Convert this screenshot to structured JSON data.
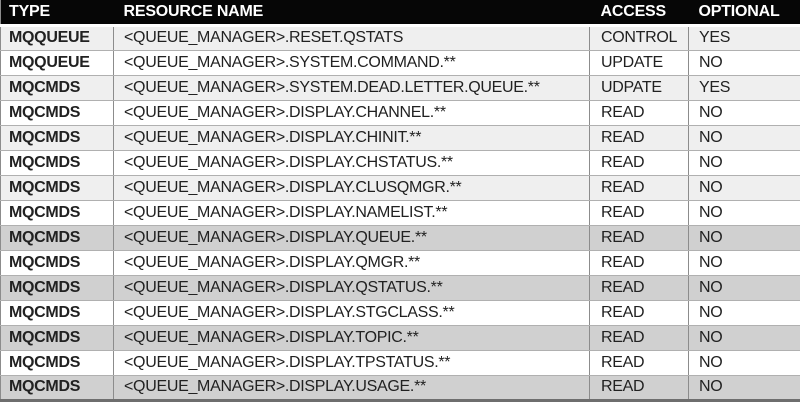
{
  "colors": {
    "header_bg": "#060606",
    "header_text": "#ffffff",
    "row_white": "#ffffff",
    "row_light_gray": "#efefef",
    "row_dark_gray": "#d0d0d0",
    "grid_vertical": "#8c8c8c",
    "grid_horizontal": "#b0b0b0",
    "outer_bottom_border": "#6e6e6e",
    "body_text": "#212121"
  },
  "table": {
    "columns": [
      {
        "id": "type",
        "label": "TYPE"
      },
      {
        "id": "resource",
        "label": "RESOURCE NAME"
      },
      {
        "id": "access",
        "label": "ACCESS"
      },
      {
        "id": "optional",
        "label": "OPTIONAL"
      }
    ],
    "rows": [
      {
        "type": "MQQUEUE",
        "resource": "<QUEUE_MANAGER>.RESET.QSTATS",
        "access": "CONTROL",
        "optional": "YES",
        "shade": "light"
      },
      {
        "type": "MQQUEUE",
        "resource": "<QUEUE_MANAGER>.SYSTEM.COMMAND.**",
        "access": "UPDATE",
        "optional": "NO",
        "shade": "white"
      },
      {
        "type": "MQCMDS",
        "resource": "<QUEUE_MANAGER>.SYSTEM.DEAD.LETTER.QUEUE.**",
        "access": "UDPATE",
        "optional": "YES",
        "shade": "light"
      },
      {
        "type": "MQCMDS",
        "resource": "<QUEUE_MANAGER>.DISPLAY.CHANNEL.**",
        "access": "READ",
        "optional": "NO",
        "shade": "white"
      },
      {
        "type": "MQCMDS",
        "resource": "<QUEUE_MANAGER>.DISPLAY.CHINIT.**",
        "access": "READ",
        "optional": "NO",
        "shade": "light"
      },
      {
        "type": "MQCMDS",
        "resource": "<QUEUE_MANAGER>.DISPLAY.CHSTATUS.**",
        "access": "READ",
        "optional": "NO",
        "shade": "white"
      },
      {
        "type": "MQCMDS",
        "resource": "<QUEUE_MANAGER>.DISPLAY.CLUSQMGR.**",
        "access": "READ",
        "optional": "NO",
        "shade": "light"
      },
      {
        "type": "MQCMDS",
        "resource": "<QUEUE_MANAGER>.DISPLAY.NAMELIST.**",
        "access": "READ",
        "optional": "NO",
        "shade": "white"
      },
      {
        "type": "MQCMDS",
        "resource": "<QUEUE_MANAGER>.DISPLAY.QUEUE.**",
        "access": "READ",
        "optional": "NO",
        "shade": "dark"
      },
      {
        "type": "MQCMDS",
        "resource": "<QUEUE_MANAGER>.DISPLAY.QMGR.**",
        "access": "READ",
        "optional": "NO",
        "shade": "white"
      },
      {
        "type": "MQCMDS",
        "resource": "<QUEUE_MANAGER>.DISPLAY.QSTATUS.**",
        "access": "READ",
        "optional": "NO",
        "shade": "dark"
      },
      {
        "type": "MQCMDS",
        "resource": "<QUEUE_MANAGER>.DISPLAY.STGCLASS.**",
        "access": "READ",
        "optional": "NO",
        "shade": "white"
      },
      {
        "type": "MQCMDS",
        "resource": "<QUEUE_MANAGER>.DISPLAY.TOPIC.**",
        "access": "READ",
        "optional": "NO",
        "shade": "dark"
      },
      {
        "type": "MQCMDS",
        "resource": "<QUEUE_MANAGER>.DISPLAY.TPSTATUS.**",
        "access": "READ",
        "optional": "NO",
        "shade": "white"
      },
      {
        "type": "MQCMDS",
        "resource": "<QUEUE_MANAGER>.DISPLAY.USAGE.**",
        "access": "READ",
        "optional": "NO",
        "shade": "dark"
      }
    ]
  }
}
